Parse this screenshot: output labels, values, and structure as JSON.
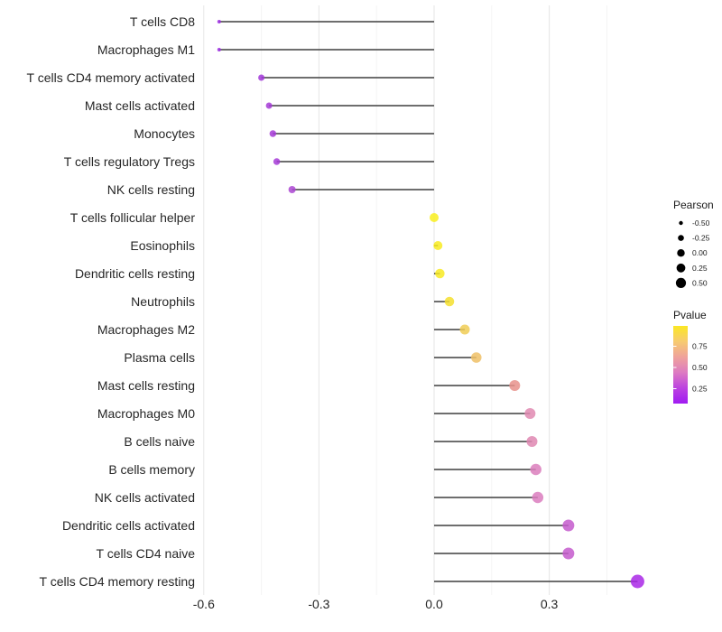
{
  "chart_data": {
    "type": "scatter",
    "subtype": "lollipop-horizontal",
    "title": "",
    "xlabel": "",
    "ylabel": "",
    "xlim": [
      -0.61,
      0.585
    ],
    "grid": "vertical-only",
    "legend_position": "right",
    "categories": [
      "T cells CD8",
      "Macrophages M1",
      "T cells CD4 memory activated",
      "Mast cells activated",
      "Monocytes",
      "T cells regulatory  Tregs",
      "NK cells resting",
      "T cells follicular helper",
      "Eosinophils",
      "Dendritic cells resting",
      "Neutrophils",
      "Macrophages M2",
      "Plasma cells",
      "Mast cells resting",
      "Macrophages M0",
      "B cells naive",
      "B cells memory",
      "NK cells activated",
      "Dendritic cells activated",
      "T cells CD4 naive",
      "T cells CD4 memory resting"
    ],
    "series": [
      {
        "name": "Pearson",
        "values": [
          -0.56,
          -0.56,
          -0.45,
          -0.43,
          -0.42,
          -0.41,
          -0.37,
          0.0,
          0.01,
          0.015,
          0.04,
          0.08,
          0.11,
          0.21,
          0.25,
          0.255,
          0.265,
          0.27,
          0.35,
          0.35,
          0.53
        ]
      }
    ],
    "point_colors": [
      "#9B2BE0",
      "#9B2BE0",
      "#A136D8",
      "#A53AD6",
      "#A53AD6",
      "#A63BD7",
      "#AC47D2",
      "#F9EE1E",
      "#F8EB21",
      "#F8EA23",
      "#F5DF2E",
      "#F0CC55",
      "#EEC066",
      "#E8918B",
      "#E089B1",
      "#DF87B2",
      "#DB7EBC",
      "#DA7CBE",
      "#C45BCC",
      "#C45BCC",
      "#A928E6"
    ],
    "point_diameters": [
      4,
      4,
      7,
      7,
      7.5,
      7.5,
      8,
      10,
      10,
      10.5,
      10.5,
      11,
      11.5,
      12,
      12,
      12,
      12.5,
      12.5,
      13,
      13,
      15
    ],
    "x_axis": {
      "tick_labels": [
        "-0.6",
        "-0.3",
        "0.0",
        "0.3"
      ],
      "tick_values": [
        -0.6,
        -0.3,
        0.0,
        0.3
      ],
      "minor_values": [
        -0.45,
        -0.15,
        0.15,
        0.45
      ]
    },
    "legend_pearson": {
      "title": "Pearson",
      "items": [
        {
          "label": "-0.50",
          "value": -0.5
        },
        {
          "label": "-0.25",
          "value": -0.25
        },
        {
          "label": "0.00",
          "value": 0.0
        },
        {
          "label": "0.25",
          "value": 0.25
        },
        {
          "label": "0.50",
          "value": 0.5
        }
      ]
    },
    "legend_pvalue": {
      "title": "Pvalue",
      "tick_labels": [
        "0.75",
        "0.50",
        "0.25"
      ],
      "gradient_top_to_bottom": [
        "#FBE723",
        "#F7CB70",
        "#EFA29B",
        "#DD7BC2",
        "#BC43E0",
        "#A01BF2"
      ]
    },
    "colors": {
      "background": "#FFFFFF",
      "stem": "#3F3F3F",
      "grid_major": "#E6E6E6",
      "grid_minor": "#F4F4F4",
      "axis_text": "#262626",
      "legend_text": "#1A1A1A",
      "legend_dot": "#000000"
    }
  }
}
